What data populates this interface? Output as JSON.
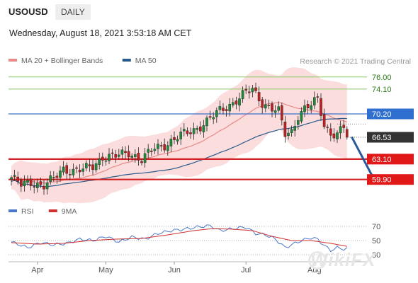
{
  "header": {
    "symbol": "USOUSD",
    "period_tab": "DAILY",
    "timestamp": "Wednesday, August 18, 2021 3:53:18 AM CET"
  },
  "watermark": "WikiFX",
  "chart_data": [
    {
      "type": "candlestick",
      "legend": [
        {
          "name": "MA 20 + Bollinger Bands",
          "color": "#e88a8a"
        },
        {
          "name": "MA 50",
          "color": "#2a5a8a"
        }
      ],
      "credit": "Research © 2021 Trading Central",
      "ylim": [
        57.2,
        77.2
      ],
      "levels": [
        {
          "value": 76.0,
          "label": "76.00",
          "kind": "green"
        },
        {
          "value": 74.1,
          "label": "74.10",
          "kind": "green"
        },
        {
          "value": 70.2,
          "label": "70.20",
          "kind": "blue"
        },
        {
          "value": 66.53,
          "label": "66.53",
          "kind": "current"
        },
        {
          "value": 63.1,
          "label": "63.10",
          "kind": "red"
        },
        {
          "value": 59.9,
          "label": "59.90",
          "kind": "red"
        }
      ],
      "x_ticks": [
        {
          "label": "Apr",
          "index": 8
        },
        {
          "label": "May",
          "index": 29
        },
        {
          "label": "Jun",
          "index": 50
        },
        {
          "label": "Jul",
          "index": 72
        },
        {
          "label": "Aug",
          "index": 93
        }
      ],
      "candle_count": 104,
      "anchors": [
        [
          0,
          60.2
        ],
        [
          3,
          59.0
        ],
        [
          6,
          59.5
        ],
        [
          10,
          58.9
        ],
        [
          13,
          60.0
        ],
        [
          16,
          61.6
        ],
        [
          19,
          61.3
        ],
        [
          22,
          61.4
        ],
        [
          25,
          62.0
        ],
        [
          28,
          63.5
        ],
        [
          32,
          63.5
        ],
        [
          36,
          64.2
        ],
        [
          40,
          63.0
        ],
        [
          44,
          64.8
        ],
        [
          48,
          65.6
        ],
        [
          52,
          66.8
        ],
        [
          56,
          67.7
        ],
        [
          60,
          69.0
        ],
        [
          64,
          70.7
        ],
        [
          68,
          72.0
        ],
        [
          72,
          73.5
        ],
        [
          74,
          74.0
        ],
        [
          77,
          72.0
        ],
        [
          80,
          71.0
        ],
        [
          82,
          70.5
        ],
        [
          84,
          67.0
        ],
        [
          86,
          67.5
        ],
        [
          88,
          70.0
        ],
        [
          90,
          71.0
        ],
        [
          92,
          71.5
        ],
        [
          94,
          72.5
        ],
        [
          96,
          68.5
        ],
        [
          98,
          67.2
        ],
        [
          100,
          67.0
        ],
        [
          102,
          68.0
        ],
        [
          104,
          66.53
        ]
      ],
      "forecast_arrow": {
        "from": [
          104,
          66.6
        ],
        "to": [
          111,
          60.2
        ]
      },
      "bollinger": {
        "upper": 76.0,
        "lower": 59.8
      }
    },
    {
      "type": "line",
      "legend": [
        {
          "name": "RSI",
          "color": "#4a78c8"
        },
        {
          "name": "9MA",
          "color": "#d03030"
        }
      ],
      "ylim": [
        20,
        80
      ],
      "y_ticks": [
        {
          "value": 70,
          "label": "70"
        },
        {
          "value": 50,
          "label": "50"
        },
        {
          "value": 30,
          "label": "30"
        }
      ],
      "rsi_anchors": [
        [
          0,
          48
        ],
        [
          5,
          40
        ],
        [
          9,
          47
        ],
        [
          13,
          44
        ],
        [
          17,
          46
        ],
        [
          21,
          52
        ],
        [
          25,
          50
        ],
        [
          29,
          56
        ],
        [
          33,
          48
        ],
        [
          37,
          55
        ],
        [
          41,
          52
        ],
        [
          45,
          60
        ],
        [
          49,
          64
        ],
        [
          53,
          66
        ],
        [
          57,
          69
        ],
        [
          61,
          71
        ],
        [
          64,
          64
        ],
        [
          67,
          66
        ],
        [
          70,
          68
        ],
        [
          72,
          69
        ],
        [
          75,
          60
        ],
        [
          78,
          58
        ],
        [
          81,
          52
        ],
        [
          84,
          40
        ],
        [
          86,
          44
        ],
        [
          89,
          50
        ],
        [
          92,
          54
        ],
        [
          94,
          52
        ],
        [
          96,
          43
        ],
        [
          98,
          36
        ],
        [
          100,
          40
        ],
        [
          102,
          38
        ],
        [
          104,
          39
        ]
      ],
      "ma_anchors": [
        [
          0,
          47
        ],
        [
          8,
          45
        ],
        [
          16,
          46
        ],
        [
          24,
          50
        ],
        [
          32,
          52
        ],
        [
          40,
          53
        ],
        [
          48,
          58
        ],
        [
          56,
          64
        ],
        [
          62,
          67
        ],
        [
          68,
          66
        ],
        [
          74,
          64
        ],
        [
          80,
          56
        ],
        [
          86,
          50
        ],
        [
          92,
          50
        ],
        [
          98,
          46
        ],
        [
          104,
          41
        ]
      ]
    }
  ]
}
